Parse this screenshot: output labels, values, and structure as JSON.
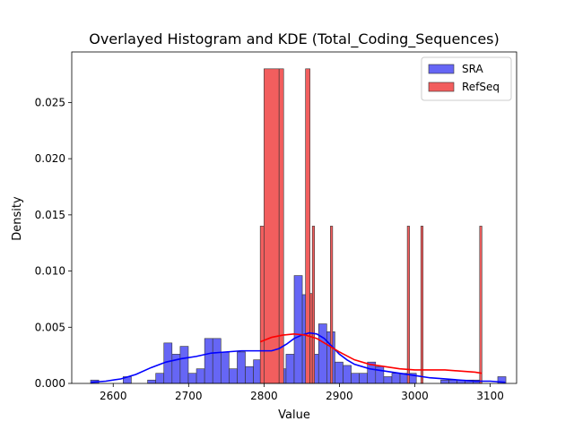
{
  "chart_data": {
    "type": "bar",
    "title": "Overlayed Histogram and KDE (Total_Coding_Sequences)",
    "xlabel": "Value",
    "ylabel": "Density",
    "xlim": [
      2545,
      3135
    ],
    "ylim": [
      0,
      0.0295
    ],
    "xticks": [
      2600,
      2700,
      2800,
      2900,
      3000,
      3100
    ],
    "yticks": [
      0.0,
      0.005,
      0.01,
      0.015,
      0.02,
      0.025
    ],
    "ytick_labels": [
      "0.000",
      "0.005",
      "0.010",
      "0.015",
      "0.020",
      "0.025"
    ],
    "grid": false,
    "legend_position": "top-right",
    "series": [
      {
        "name": "SRA",
        "kind": "histogram",
        "color": "#0000ff",
        "fill": "#6666f5",
        "bin_edges": [
          2570,
          2580.8,
          2591.6,
          2602.4,
          2613.2,
          2624,
          2634.8,
          2645.6,
          2656.4,
          2667.2,
          2678,
          2688.8,
          2699.6,
          2710.4,
          2721.2,
          2732,
          2742.8,
          2753.6,
          2764.4,
          2775.2,
          2786,
          2796.8,
          2807.6,
          2818.4,
          2829.2,
          2840,
          2850.8,
          2861.6,
          2872.4,
          2883.2,
          2894,
          2904.8,
          2915.6,
          2926.4,
          2937.2,
          2948,
          2958.8,
          2969.6,
          2980.4,
          2991.2,
          3002,
          3012.8,
          3023.6,
          3034.4,
          3045.2,
          3056,
          3066.8,
          3077.6,
          3088.4,
          3099.2,
          3110,
          3120.8
        ],
        "values": [
          0.0003,
          0,
          0,
          0,
          0.0006,
          0,
          0,
          0.0003,
          0.0009,
          0.0036,
          0.0026,
          0.0033,
          0.0009,
          0.0013,
          0.004,
          0.004,
          0.0028,
          0.0013,
          0.0028,
          0.0015,
          0.0021,
          0.0013,
          0.0022,
          0.0013,
          0.0026,
          0.0096,
          0.0079,
          0.0026,
          0.0053,
          0.0046,
          0.0019,
          0.0016,
          0.0009,
          0.0009,
          0.0019,
          0.0015,
          0.0006,
          0.0009,
          0.0009,
          0.0009,
          0,
          0,
          0,
          0.0003,
          0.0003,
          0.0003,
          0.0003,
          0.0003,
          0,
          0,
          0.0006
        ]
      },
      {
        "name": "RefSeq",
        "kind": "histogram",
        "color": "#ff0000",
        "fill": "#f25e5e",
        "bin_edges": [
          2795,
          2800,
          2820,
          2826,
          2855,
          2861,
          2864,
          2867,
          2888,
          2891,
          2990,
          2993,
          3008,
          3011,
          3086,
          3089
        ],
        "values": [
          0.014,
          0.028,
          0.028,
          0,
          0.028,
          0.008,
          0.014,
          0,
          0.014,
          0,
          0.014,
          0,
          0.014,
          0,
          0.014
        ],
        "gaps": [
          [
            2793.5,
            2795
          ],
          [
            2803,
            2820
          ],
          [
            2826,
            2855
          ],
          [
            2867,
            2888
          ],
          [
            2891,
            2990
          ],
          [
            2993,
            3008
          ],
          [
            3011,
            3086
          ]
        ]
      }
    ],
    "kde": [
      {
        "name": "SRA",
        "color": "#0000ff",
        "x": [
          2570,
          2590,
          2610,
          2630,
          2650,
          2670,
          2690,
          2710,
          2730,
          2750,
          2770,
          2790,
          2800,
          2810,
          2820,
          2830,
          2840,
          2850,
          2860,
          2870,
          2880,
          2890,
          2900,
          2910,
          2920,
          2940,
          2960,
          2980,
          3000,
          3020,
          3040,
          3060,
          3080,
          3100,
          3120
        ],
        "y": [
          0.0001,
          0.0002,
          0.0004,
          0.0008,
          0.0014,
          0.0019,
          0.0022,
          0.0024,
          0.0027,
          0.0028,
          0.0029,
          0.0029,
          0.0029,
          0.0029,
          0.0031,
          0.0035,
          0.004,
          0.0043,
          0.0045,
          0.0044,
          0.004,
          0.0033,
          0.0026,
          0.0021,
          0.0017,
          0.0013,
          0.0011,
          0.0009,
          0.0007,
          0.0005,
          0.0004,
          0.0003,
          0.0002,
          0.0002,
          0.0001
        ]
      },
      {
        "name": "RefSeq",
        "color": "#ff0000",
        "x": [
          2795,
          2810,
          2825,
          2840,
          2855,
          2870,
          2885,
          2900,
          2920,
          2940,
          2960,
          2980,
          3000,
          3020,
          3040,
          3060,
          3080,
          3089
        ],
        "y": [
          0.0037,
          0.0041,
          0.0043,
          0.0044,
          0.0043,
          0.004,
          0.0034,
          0.0028,
          0.0021,
          0.0017,
          0.0015,
          0.0013,
          0.0012,
          0.0012,
          0.0012,
          0.0011,
          0.001,
          0.0009
        ]
      }
    ]
  }
}
